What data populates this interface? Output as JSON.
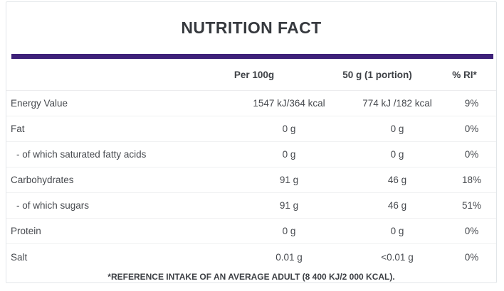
{
  "title": "NUTRITION FACT",
  "accent_color": "#3e2179",
  "table": {
    "headers": {
      "per100": "Per 100g",
      "portion": "50 g (1 portion)",
      "ri": "% RI*"
    },
    "rows": [
      {
        "label": "Energy Value",
        "indent": false,
        "per100": "1547 kJ/364 kcal",
        "portion": "774 kJ /182 kcal",
        "ri": "9%"
      },
      {
        "label": "Fat",
        "indent": false,
        "per100": "0 g",
        "portion": "0 g",
        "ri": "0%"
      },
      {
        "label": "- of which saturated fatty acids",
        "indent": true,
        "per100": "0 g",
        "portion": "0 g",
        "ri": "0%"
      },
      {
        "label": "Carbohydrates",
        "indent": false,
        "per100": "91 g",
        "portion": "46 g",
        "ri": "18%"
      },
      {
        "label": "- of which sugars",
        "indent": true,
        "per100": "91 g",
        "portion": "46 g",
        "ri": "51%"
      },
      {
        "label": "Protein",
        "indent": false,
        "per100": "0 g",
        "portion": "0 g",
        "ri": "0%"
      },
      {
        "label": "Salt",
        "indent": false,
        "per100": "0.01 g",
        "portion": "<0.01 g",
        "ri": "0%"
      }
    ],
    "footnote": "*REFERENCE INTAKE OF AN AVERAGE ADULT (8 400 KJ/2 000 KCAL)."
  }
}
